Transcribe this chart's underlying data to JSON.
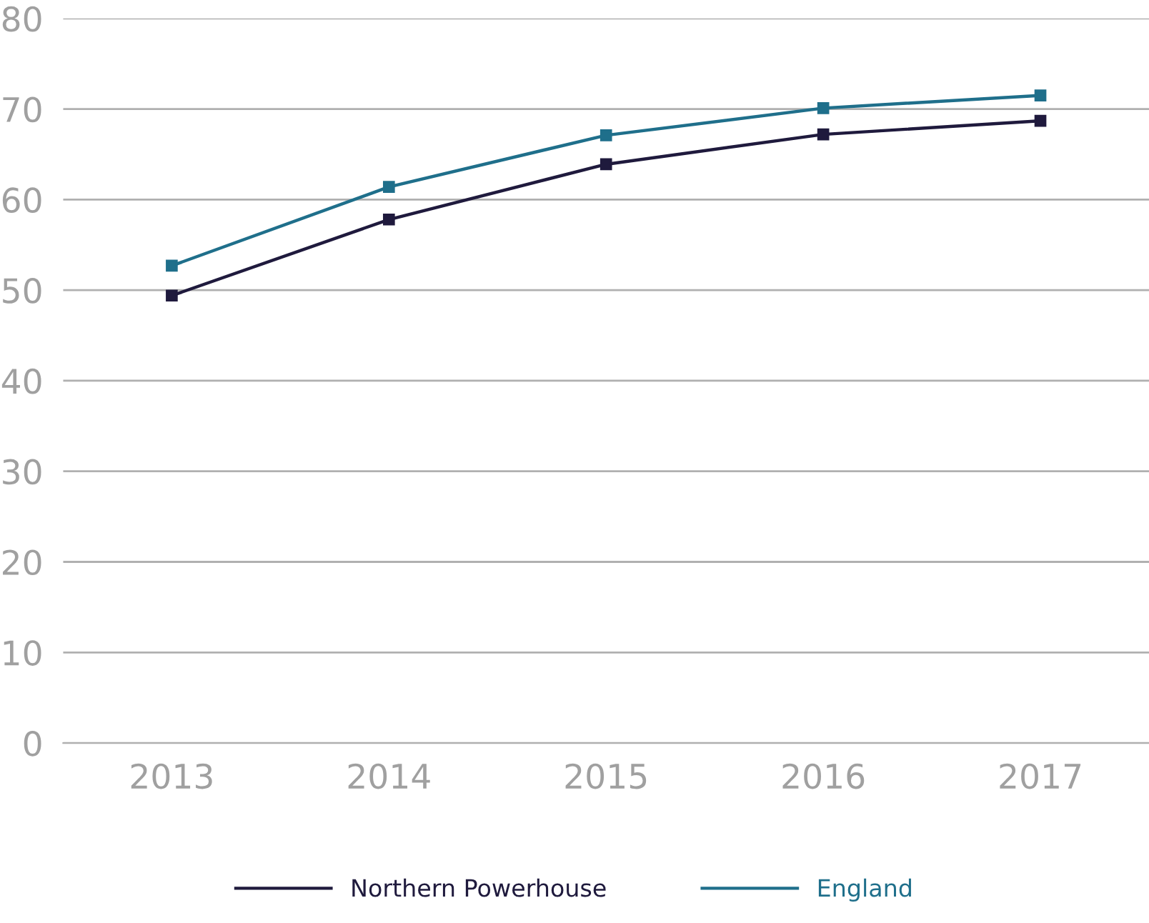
{
  "chart_data": {
    "type": "line",
    "categories": [
      "2013",
      "2014",
      "2015",
      "2016",
      "2017"
    ],
    "series": [
      {
        "name": "Northern Powerhouse",
        "color": "#1f1a3d",
        "values": [
          49.4,
          57.8,
          63.9,
          67.2,
          68.7
        ]
      },
      {
        "name": "England",
        "color": "#1f6f8b",
        "values": [
          52.7,
          61.4,
          67.1,
          70.1,
          71.5
        ]
      }
    ],
    "ylim": [
      0,
      80
    ],
    "yticks": [
      0,
      10,
      20,
      30,
      40,
      50,
      60,
      70,
      80
    ],
    "grid": "y",
    "legend": "bottom",
    "marker": "square",
    "line_style": "solid"
  }
}
